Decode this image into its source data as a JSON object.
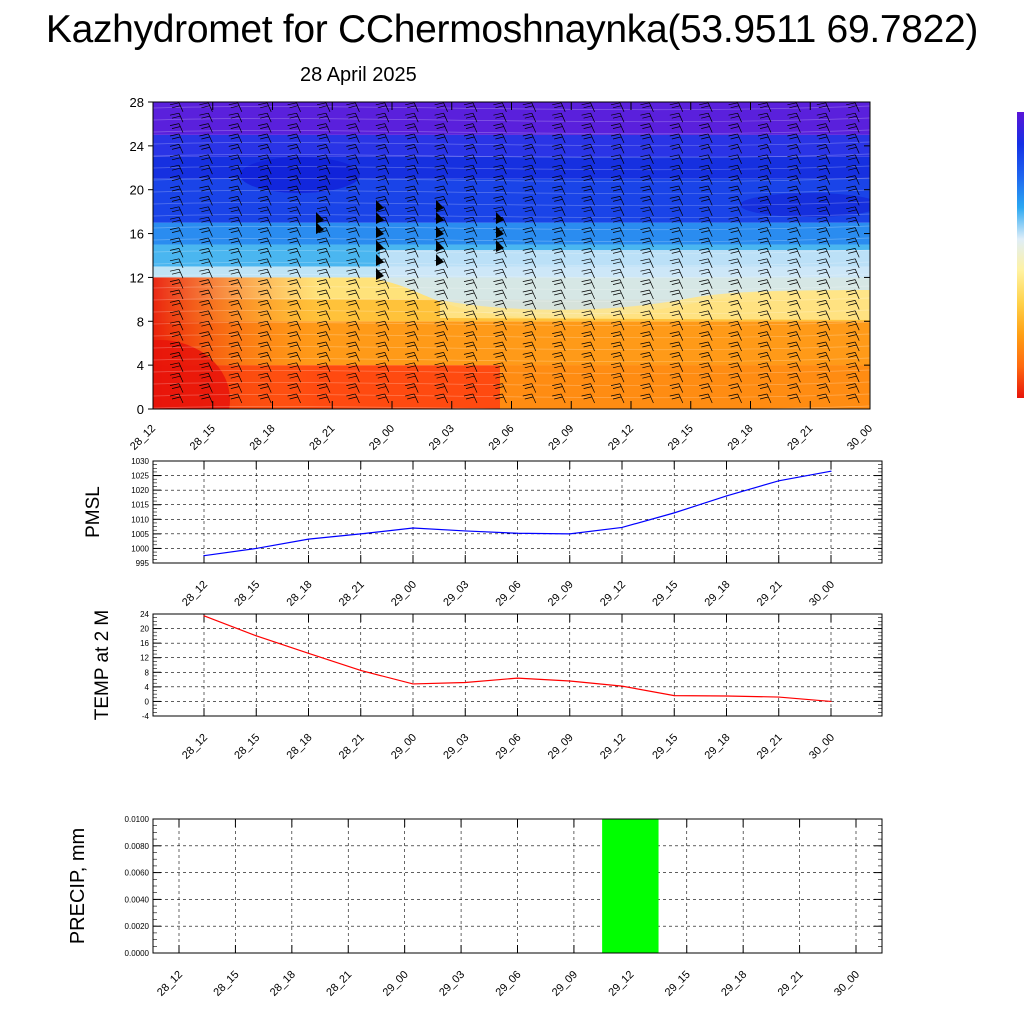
{
  "header": {
    "title": "Kazhydromet for CChermoshnaynka(53.9511 69.7822)",
    "date": "28 April 2025"
  },
  "chart_data": [
    {
      "type": "heatmap",
      "title": "",
      "xlabel": "",
      "ylabel": "",
      "x": [
        "28_12",
        "28_15",
        "28_18",
        "28_21",
        "29_00",
        "29_03",
        "29_06",
        "29_09",
        "29_12",
        "29_15",
        "29_18",
        "29_21",
        "30_00"
      ],
      "ylim": [
        0,
        28
      ],
      "yticks": [
        0,
        4,
        8,
        12,
        16,
        20,
        24,
        28
      ],
      "colormap": [
        "#5a14d8",
        "#1430e6",
        "#1e64f0",
        "#2aa8f2",
        "#dfeef8",
        "#fff2a0",
        "#ffd24a",
        "#ffa014",
        "#ff6a10",
        "#e8140a"
      ],
      "wind_barbs": true,
      "grid": false
    },
    {
      "type": "line",
      "ylabel": "PMSL",
      "x": [
        "28_12",
        "28_15",
        "28_18",
        "28_21",
        "29_00",
        "29_03",
        "29_06",
        "29_09",
        "29_12",
        "29_15",
        "29_18",
        "29_21",
        "30_00"
      ],
      "series": [
        {
          "name": "",
          "color": "#0000ff",
          "values": [
            997.5,
            1000,
            1003.2,
            1005,
            1007,
            1006,
            1005.2,
            1005,
            1007.2,
            1012.2,
            1018,
            1023.2,
            1026.5
          ]
        }
      ],
      "ylim": [
        995,
        1030
      ],
      "yticks": [
        995,
        1000,
        1005,
        1010,
        1015,
        1020,
        1025,
        1030
      ],
      "grid": true
    },
    {
      "type": "line",
      "ylabel": "TEMP at 2 M",
      "x": [
        "28_12",
        "28_15",
        "28_18",
        "28_21",
        "29_00",
        "29_03",
        "29_06",
        "29_09",
        "29_12",
        "29_15",
        "29_18",
        "29_21",
        "30_00"
      ],
      "series": [
        {
          "name": "",
          "color": "#ff0000",
          "values": [
            23.5,
            18,
            13.2,
            8.5,
            4.8,
            5.2,
            6.4,
            5.6,
            4.2,
            1.6,
            1.5,
            1.2,
            0
          ]
        }
      ],
      "ylim": [
        -4,
        24
      ],
      "yticks": [
        -4,
        0,
        4,
        8,
        12,
        16,
        20,
        24
      ],
      "grid": true
    },
    {
      "type": "bar",
      "ylabel": "PRECIP, mm",
      "x": [
        "28_12",
        "28_15",
        "28_18",
        "28_21",
        "29_00",
        "29_03",
        "29_06",
        "29_09",
        "29_12",
        "29_15",
        "29_18",
        "29_21",
        "30_00"
      ],
      "values": [
        0,
        0,
        0,
        0,
        0,
        0,
        0,
        0,
        0.01,
        0,
        0,
        0,
        0
      ],
      "bar_color": "#00ff00",
      "ylim": [
        0,
        0.01
      ],
      "ytick_labels": [
        "0.0000",
        "0.0020",
        "0.0040",
        "0.0060",
        "0.0080",
        "0.0100"
      ],
      "grid": true
    }
  ]
}
